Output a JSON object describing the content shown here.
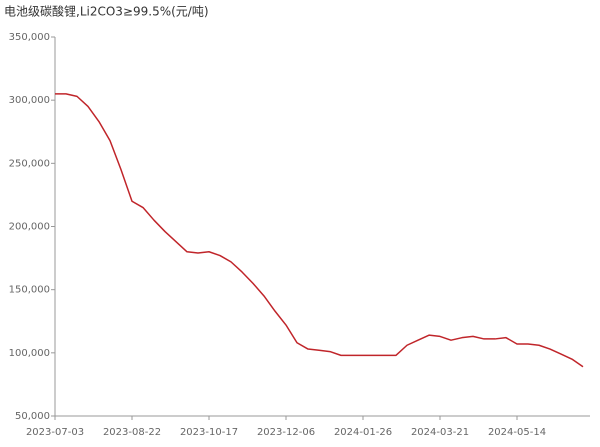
{
  "chart_data": {
    "type": "line",
    "title": "电池级碳酸锂,Li2CO3≥99.5%(元/吨)",
    "categories": [
      "2023-07-03",
      null,
      null,
      null,
      null,
      null,
      null,
      "2023-08-22",
      null,
      null,
      null,
      null,
      null,
      null,
      "2023-10-17",
      null,
      null,
      null,
      null,
      null,
      null,
      "2023-12-06",
      null,
      null,
      null,
      null,
      null,
      null,
      "2024-01-26",
      null,
      null,
      null,
      null,
      null,
      null,
      "2024-03-21",
      null,
      null,
      null,
      null,
      null,
      null,
      "2024-05-14",
      null,
      null,
      null,
      null,
      null,
      null
    ],
    "series": [
      {
        "color": "#c0252a",
        "values": [
          305000,
          305000,
          303000,
          295000,
          283000,
          268000,
          245000,
          220000,
          215000,
          205000,
          196000,
          188000,
          180000,
          179000,
          180000,
          177000,
          172000,
          164000,
          155000,
          145000,
          133000,
          122000,
          108000,
          103000,
          102000,
          101000,
          98000,
          98000,
          98000,
          98000,
          98000,
          98000,
          106000,
          110000,
          114000,
          113000,
          110000,
          112000,
          113000,
          111000,
          111000,
          112000,
          107000,
          107000,
          106000,
          103000,
          99000,
          95000,
          89000
        ]
      }
    ],
    "ylim": [
      50000,
      350000
    ],
    "yticks": [
      {
        "value": 50000,
        "label": "50,000"
      },
      {
        "value": 100000,
        "label": "100,000"
      },
      {
        "value": 150000,
        "label": "150,000"
      },
      {
        "value": 200000,
        "label": "200,000"
      },
      {
        "value": 250000,
        "label": "250,000"
      },
      {
        "value": 300000,
        "label": "300,000"
      },
      {
        "value": 350000,
        "label": "350,000"
      }
    ],
    "grid": false
  }
}
